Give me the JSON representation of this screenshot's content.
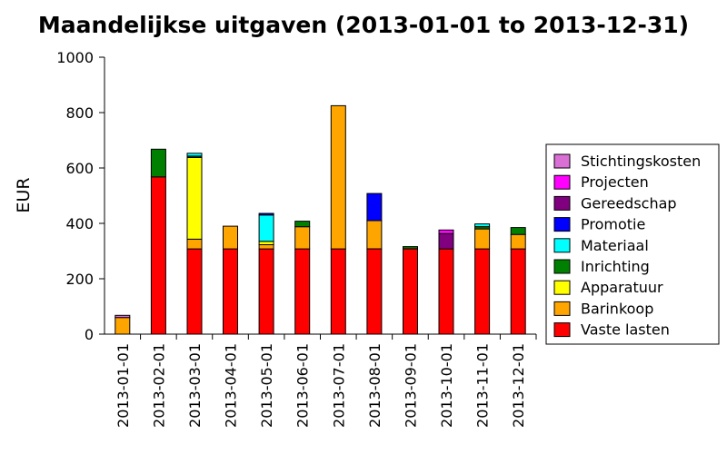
{
  "chart_data": {
    "type": "bar",
    "stacked": true,
    "title": "Maandelijkse uitgaven (2013-01-01 to 2013-12-31)",
    "xlabel": "",
    "ylabel": "EUR",
    "ylim": [
      0,
      1000
    ],
    "yticks": [
      "0",
      "200",
      "400",
      "600",
      "800",
      "1000"
    ],
    "grid": false,
    "legend_position": "right",
    "categories": [
      "2013-01-01",
      "2013-02-01",
      "2013-03-01",
      "2013-04-01",
      "2013-05-01",
      "2013-06-01",
      "2013-07-01",
      "2013-08-01",
      "2013-09-01",
      "2013-10-01",
      "2013-11-01",
      "2013-12-01"
    ],
    "series": [
      {
        "name": "Vaste lasten",
        "color": "#ff0000",
        "values": [
          0,
          568,
          308,
          308,
          308,
          308,
          308,
          308,
          308,
          308,
          308,
          308
        ]
      },
      {
        "name": "Barinkoop",
        "color": "#ffa500",
        "values": [
          60,
          0,
          35,
          82,
          15,
          80,
          517,
          102,
          0,
          0,
          72,
          52
        ]
      },
      {
        "name": "Apparatuur",
        "color": "#ffff00",
        "values": [
          0,
          0,
          295,
          0,
          12,
          0,
          0,
          0,
          0,
          0,
          0,
          0
        ]
      },
      {
        "name": "Inrichting",
        "color": "#008000",
        "values": [
          0,
          100,
          5,
          0,
          0,
          20,
          0,
          0,
          8,
          0,
          8,
          25
        ]
      },
      {
        "name": "Materiaal",
        "color": "#00ffff",
        "values": [
          0,
          0,
          10,
          0,
          95,
          0,
          0,
          0,
          0,
          0,
          10,
          0
        ]
      },
      {
        "name": "Promotie",
        "color": "#0000ff",
        "values": [
          0,
          0,
          0,
          0,
          6,
          0,
          0,
          98,
          0,
          0,
          0,
          0
        ]
      },
      {
        "name": "Gereedschap",
        "color": "#800080",
        "values": [
          0,
          0,
          0,
          0,
          0,
          0,
          0,
          0,
          0,
          55,
          0,
          0
        ]
      },
      {
        "name": "Projecten",
        "color": "#ff00ff",
        "values": [
          0,
          0,
          0,
          0,
          0,
          0,
          0,
          0,
          0,
          13,
          0,
          0
        ]
      },
      {
        "name": "Stichtingskosten",
        "color": "#da70d6",
        "values": [
          8,
          0,
          0,
          0,
          0,
          0,
          0,
          0,
          0,
          0,
          0,
          0
        ]
      }
    ]
  }
}
